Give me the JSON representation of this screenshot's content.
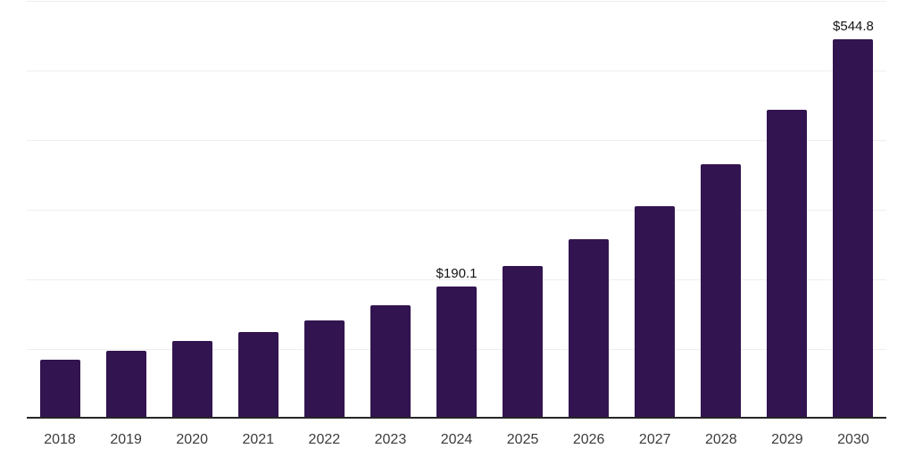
{
  "chart_data": {
    "type": "bar",
    "title": "",
    "xlabel": "",
    "ylabel": "",
    "categories": [
      "2018",
      "2019",
      "2020",
      "2021",
      "2022",
      "2023",
      "2024",
      "2025",
      "2026",
      "2027",
      "2028",
      "2029",
      "2030"
    ],
    "values": [
      85.1,
      97.0,
      111.0,
      124.3,
      141.4,
      162.7,
      190.1,
      219.4,
      258.2,
      305.1,
      364.8,
      443.6,
      544.8
    ],
    "data_labels": [
      "",
      "",
      "",
      "",
      "",
      "",
      "$190.1",
      "",
      "",
      "",
      "",
      "",
      "$544.8"
    ],
    "currency_prefix": "$",
    "ylim": [
      0,
      600
    ],
    "grid_interval": 100,
    "grid": "horizontal",
    "y_tick_labels_visible": false,
    "legend_position": "none",
    "colors": {
      "bar": "#321450",
      "axis_line": "#262626",
      "gridline": "#eeeeee",
      "tick_label": "#3c3c3c",
      "data_label": "#141414",
      "background": "#ffffff"
    }
  }
}
